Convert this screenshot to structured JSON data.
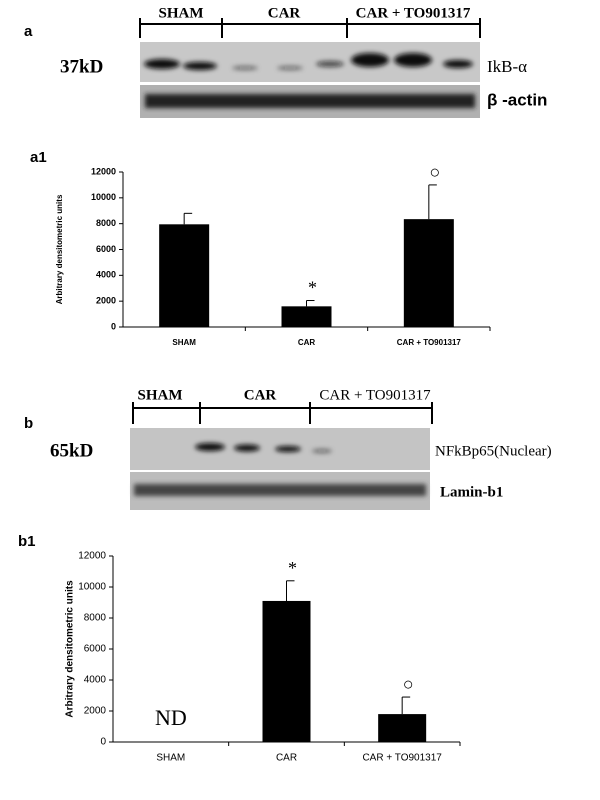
{
  "blot_a": {
    "panel_label": "a",
    "groups": [
      "SHAM",
      "CAR",
      "CAR + TO901317"
    ],
    "size": "37kD",
    "target": "IkB-α",
    "control": "β -actin"
  },
  "blot_b": {
    "panel_label": "b",
    "groups": [
      "SHAM",
      "CAR",
      "CAR + TO901317"
    ],
    "size": "65kD",
    "target": "NFkBp65(Nuclear)",
    "control": "Lamin-b1"
  },
  "chart_data": [
    {
      "type": "bar",
      "panel_label": "a1",
      "ylabel": "Arbitrary densitometric units",
      "categories": [
        "SHAM",
        "CAR",
        "CAR + TO901317"
      ],
      "values": [
        7950,
        1600,
        8350
      ],
      "errors": [
        850,
        450,
        2650
      ],
      "markers": [
        null,
        "*",
        "○"
      ],
      "color": "#000000",
      "ylim": [
        0,
        12000
      ],
      "yticks": [
        0,
        2000,
        4000,
        6000,
        8000,
        10000,
        12000
      ]
    },
    {
      "type": "bar",
      "panel_label": "b1",
      "ylabel": "Arbitrary densitometric units",
      "categories": [
        "SHAM",
        "CAR",
        "CAR + TO901317"
      ],
      "values": [
        null,
        9100,
        1800
      ],
      "errors": [
        null,
        1300,
        1100
      ],
      "value_labels": [
        "ND",
        null,
        null
      ],
      "markers": [
        null,
        "*",
        "○"
      ],
      "color": "#000000",
      "ylim": [
        0,
        12000
      ],
      "yticks": [
        0,
        2000,
        4000,
        6000,
        8000,
        10000,
        12000
      ]
    }
  ]
}
